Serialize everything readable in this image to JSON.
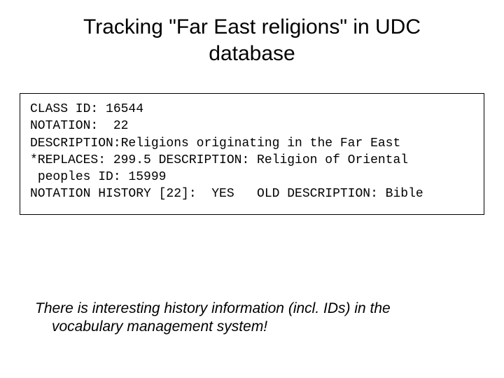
{
  "title": "Tracking \"Far East religions\" in UDC database",
  "record": {
    "line1": "CLASS ID: 16544",
    "line2": "NOTATION:  22",
    "line3": "DESCRIPTION:Religions originating in the Far East",
    "line4": "*REPLACES: 299.5 DESCRIPTION: Religion of Oriental",
    "line5": " peoples ID: 15999",
    "line6": "NOTATION HISTORY [22]:  YES   OLD DESCRIPTION: Bible"
  },
  "note": {
    "line1": "There is interesting history information (incl. IDs) in the",
    "line2": "vocabulary management system!"
  },
  "colors": {
    "background": "#ffffff",
    "text": "#000000",
    "border": "#000000"
  }
}
